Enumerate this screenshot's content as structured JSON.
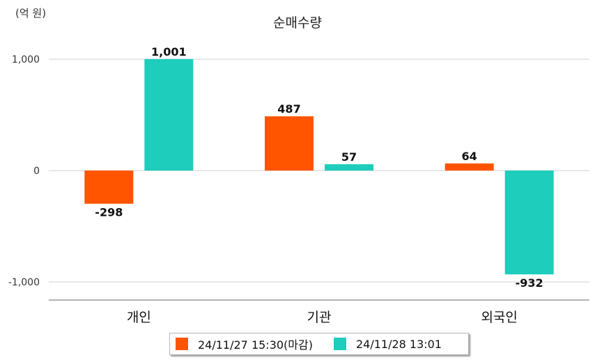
{
  "unit": "(억 원)",
  "chart_data": {
    "type": "bar",
    "title": "순매수량",
    "categories": [
      "개인",
      "기관",
      "외국인"
    ],
    "series": [
      {
        "name": "24/11/27 15:30(마감)",
        "color": "#ff5500",
        "values": [
          -298,
          487,
          64
        ],
        "labels": [
          "-298",
          "487",
          "64"
        ]
      },
      {
        "name": "24/11/28 13:01",
        "color": "#1ecdbb",
        "values": [
          1001,
          57,
          -932
        ],
        "labels": [
          "1,001",
          "57",
          "-932"
        ]
      }
    ],
    "yticks": [
      1000,
      0,
      -1000
    ],
    "ytick_labels": [
      "1,000",
      "0",
      "-1,000"
    ],
    "ylim": [
      -1150,
      1200
    ],
    "grid": true,
    "legend_position": "bottom"
  }
}
